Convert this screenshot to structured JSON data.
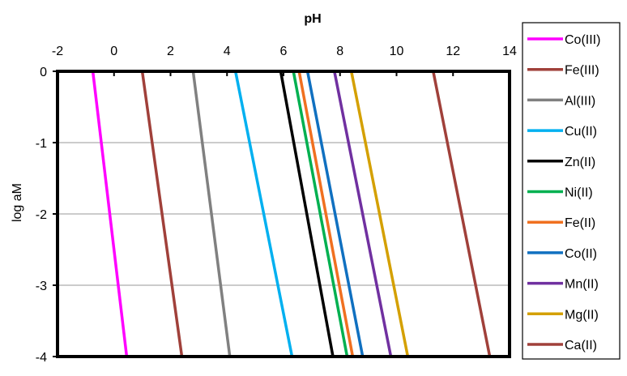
{
  "chart_data": {
    "type": "line",
    "title": "",
    "xlabel": "pH",
    "ylabel": "log aM",
    "xlim": [
      -2,
      14
    ],
    "ylim": [
      -4,
      0
    ],
    "x_ticks": [
      -2,
      0,
      2,
      4,
      6,
      8,
      10,
      12,
      14
    ],
    "y_ticks": [
      0,
      -1,
      -2,
      -3,
      -4
    ],
    "x_axis_position": "top",
    "grid": "horizontal",
    "legend_position": "right",
    "series": [
      {
        "name": "Co(III)",
        "color": "#FF00FF",
        "points": [
          [
            -0.75,
            0
          ],
          [
            0.45,
            -4
          ]
        ]
      },
      {
        "name": "Fe(III)",
        "color": "#A0403A",
        "points": [
          [
            1.0,
            0
          ],
          [
            2.4,
            -4
          ]
        ]
      },
      {
        "name": "Al(III)",
        "color": "#808080",
        "points": [
          [
            2.8,
            0
          ],
          [
            4.1,
            -4
          ]
        ]
      },
      {
        "name": "Cu(II)",
        "color": "#00B0F0",
        "points": [
          [
            4.3,
            0
          ],
          [
            6.3,
            -4
          ]
        ]
      },
      {
        "name": "Zn(II)",
        "color": "#000000",
        "points": [
          [
            5.9,
            0
          ],
          [
            7.75,
            -4
          ]
        ]
      },
      {
        "name": "Ni(II)",
        "color": "#00B050",
        "points": [
          [
            6.35,
            0
          ],
          [
            8.25,
            -4
          ]
        ]
      },
      {
        "name": "Fe(II)",
        "color": "#F07020",
        "points": [
          [
            6.55,
            0
          ],
          [
            8.45,
            -4
          ]
        ]
      },
      {
        "name": "Co(II)",
        "color": "#1070C0",
        "points": [
          [
            6.85,
            0
          ],
          [
            8.8,
            -4
          ]
        ]
      },
      {
        "name": "Mn(II)",
        "color": "#7030A0",
        "points": [
          [
            7.8,
            0
          ],
          [
            9.8,
            -4
          ]
        ]
      },
      {
        "name": "Mg(II)",
        "color": "#D4A000",
        "points": [
          [
            8.4,
            0
          ],
          [
            10.4,
            -4
          ]
        ]
      },
      {
        "name": "Ca(II)",
        "color": "#A0403A",
        "points": [
          [
            11.3,
            0
          ],
          [
            13.3,
            -4
          ]
        ]
      }
    ]
  }
}
